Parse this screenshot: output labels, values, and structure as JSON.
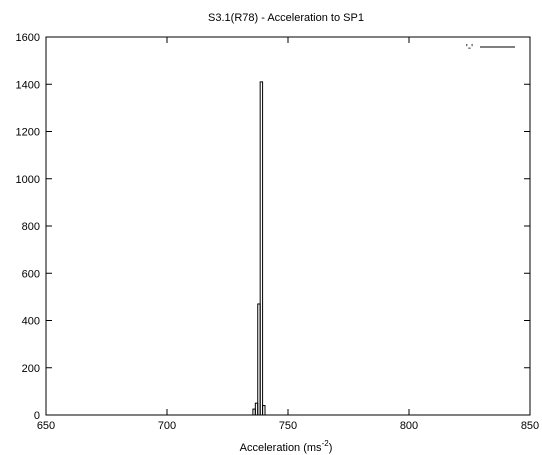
{
  "chart_data": {
    "type": "histogram-step",
    "title": "S3.1(R78) - Acceleration to SP1",
    "xlabel": "Acceleration (ms",
    "xlabel_superscript": "-2",
    "xlabel_suffix": ")",
    "ylabel": "",
    "xlim": [
      650,
      850
    ],
    "ylim": [
      0,
      1600
    ],
    "x_ticks": [
      650,
      700,
      750,
      800,
      850
    ],
    "y_ticks": [
      0,
      200,
      400,
      600,
      800,
      1000,
      1200,
      1400,
      1600
    ],
    "grid": false,
    "legend": {
      "placement": "top-right",
      "entries": [
        {
          "label": "'-'",
          "style": "solid-line",
          "color": "#000000"
        }
      ]
    },
    "series": [
      {
        "name": "'-'",
        "color": "#000000",
        "bins": [
          {
            "x0": 735.5,
            "x1": 736.5,
            "count": 25
          },
          {
            "x0": 736.5,
            "x1": 737.5,
            "count": 50
          },
          {
            "x0": 737.5,
            "x1": 738.5,
            "count": 470
          },
          {
            "x0": 738.5,
            "x1": 739.5,
            "count": 1410
          },
          {
            "x0": 739.5,
            "x1": 740.5,
            "count": 40
          }
        ]
      }
    ]
  }
}
